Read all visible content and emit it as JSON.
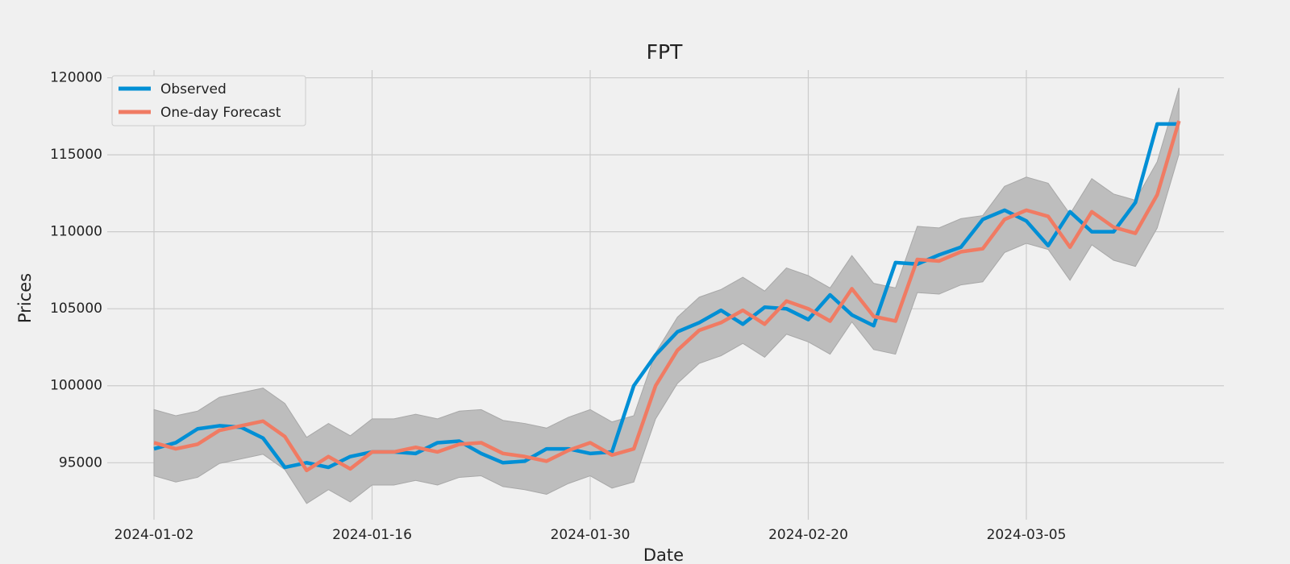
{
  "chart_data": {
    "type": "line",
    "title": "FPT",
    "x_label": "Date",
    "y_label": "Prices",
    "categories": [
      "2024-01-02",
      null,
      null,
      null,
      null,
      null,
      null,
      null,
      null,
      null,
      "2024-01-16",
      null,
      null,
      null,
      null,
      null,
      null,
      null,
      null,
      null,
      "2024-01-30",
      null,
      null,
      null,
      null,
      null,
      null,
      null,
      null,
      null,
      "2024-02-20",
      null,
      null,
      null,
      null,
      null,
      null,
      null,
      null,
      null,
      "2024-03-05",
      null,
      null,
      null,
      null,
      null,
      null,
      null
    ],
    "series": [
      {
        "name": "Observed",
        "color": "#008fd5",
        "values": [
          95900,
          96300,
          97200,
          97400,
          97300,
          96600,
          94700,
          95000,
          94700,
          95400,
          95700,
          95700,
          95600,
          96300,
          96400,
          95600,
          95000,
          95100,
          95900,
          95900,
          95600,
          95700,
          100000,
          102000,
          103500,
          104100,
          104900,
          104000,
          105100,
          105000,
          104300,
          105900,
          104600,
          103900,
          108000,
          107900,
          108500,
          109000,
          110800,
          111400,
          110700,
          109100,
          111300,
          110000,
          110000,
          111900,
          117000,
          117000
        ]
      },
      {
        "name": "One-day Forecast",
        "color": "#f07b63",
        "values": [
          96300,
          95900,
          96200,
          97100,
          97400,
          97700,
          96700,
          94500,
          95400,
          94600,
          95700,
          95700,
          96000,
          95700,
          96200,
          96300,
          95600,
          95400,
          95100,
          95800,
          96300,
          95500,
          95900,
          100000,
          102300,
          103600,
          104100,
          104900,
          104000,
          105500,
          105000,
          104200,
          106300,
          104500,
          104200,
          108200,
          108100,
          108700,
          108900,
          110800,
          111400,
          111000,
          109000,
          111300,
          110300,
          109900,
          112400,
          117200
        ]
      }
    ],
    "band": {
      "color": "#bdbdbd",
      "upper": [
        98450,
        98050,
        98350,
        99250,
        99550,
        99850,
        98850,
        96650,
        97550,
        96750,
        97850,
        97850,
        98150,
        97850,
        98350,
        98450,
        97750,
        97550,
        97250,
        97950,
        98450,
        97650,
        98050,
        102150,
        104450,
        105750,
        106250,
        107050,
        106150,
        107650,
        107150,
        106350,
        108450,
        106650,
        106350,
        110350,
        110250,
        110850,
        111050,
        112950,
        113550,
        113150,
        111150,
        113450,
        112450,
        112050,
        114550,
        119350
      ],
      "lower": [
        94150,
        93750,
        94050,
        94950,
        95250,
        95550,
        94550,
        92350,
        93250,
        92450,
        93550,
        93550,
        93850,
        93550,
        94050,
        94150,
        93450,
        93250,
        92950,
        93650,
        94150,
        93350,
        93750,
        97850,
        100150,
        101450,
        101950,
        102750,
        101850,
        103350,
        102850,
        102050,
        104150,
        102350,
        102050,
        106050,
        105950,
        106550,
        106750,
        108650,
        109250,
        108850,
        106850,
        109150,
        108150,
        107750,
        110250,
        115050
      ]
    },
    "ylim": [
      91300,
      120500
    ],
    "yticks": [
      95000,
      100000,
      105000,
      110000,
      115000,
      120000
    ],
    "grid": true,
    "legend": "upper left"
  }
}
